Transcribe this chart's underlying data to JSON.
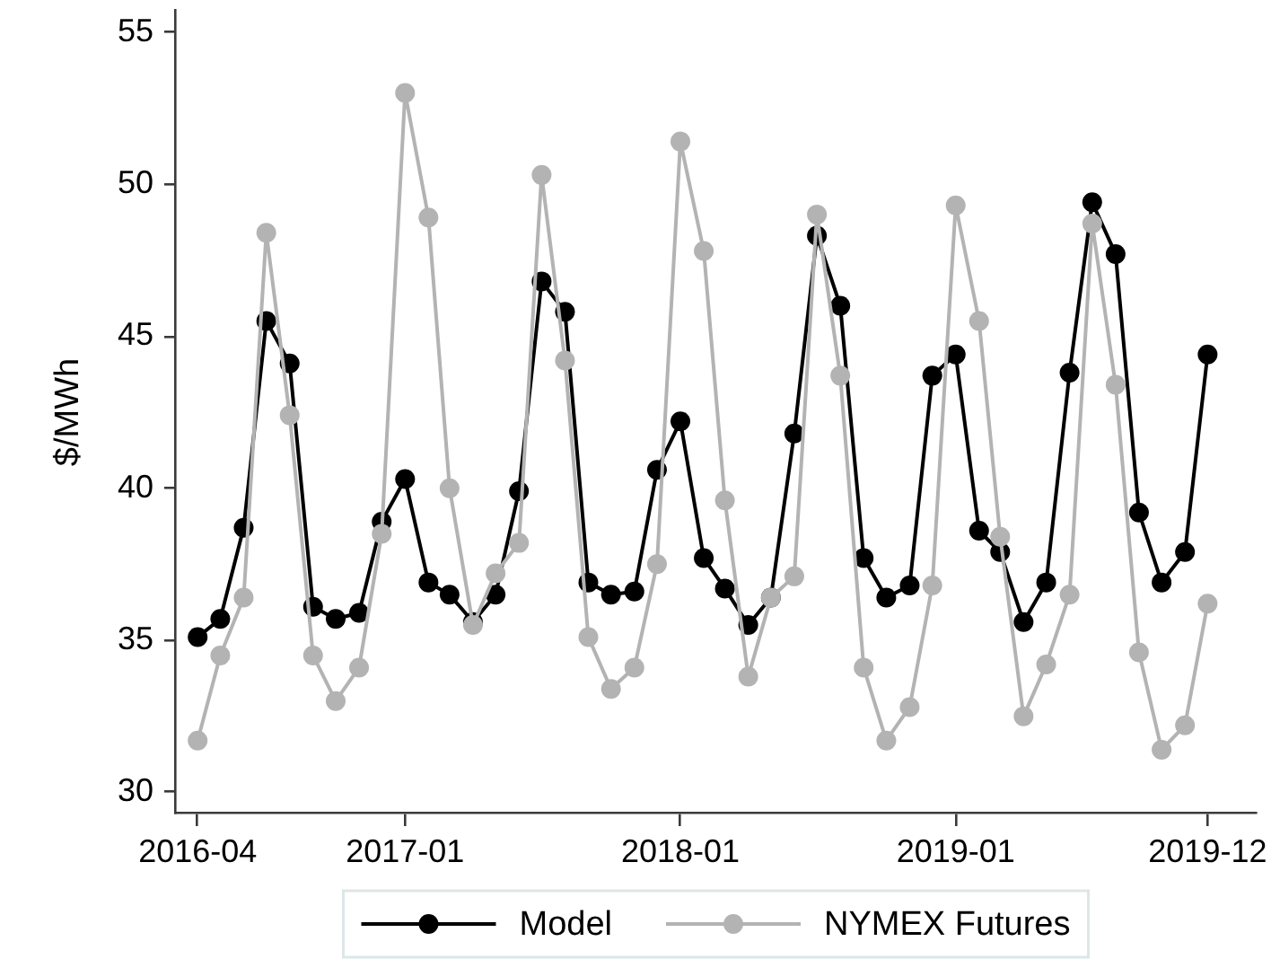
{
  "chart_data": {
    "type": "line",
    "ylabel": "$/MWh",
    "x": [
      "2016-04",
      "2016-05",
      "2016-06",
      "2016-07",
      "2016-08",
      "2016-09",
      "2016-10",
      "2016-11",
      "2016-12",
      "2017-01",
      "2017-02",
      "2017-03",
      "2017-04",
      "2017-05",
      "2017-06",
      "2017-07",
      "2017-08",
      "2017-09",
      "2017-10",
      "2017-11",
      "2017-12",
      "2018-01",
      "2018-02",
      "2018-03",
      "2018-04",
      "2018-05",
      "2018-06",
      "2018-07",
      "2018-08",
      "2018-09",
      "2018-10",
      "2018-11",
      "2018-12",
      "2019-01",
      "2019-02",
      "2019-03",
      "2019-04",
      "2019-05",
      "2019-06",
      "2019-07",
      "2019-08",
      "2019-09",
      "2019-10",
      "2019-11",
      "2019-12"
    ],
    "xlim": [
      "2016-03-02",
      "2020-02-04"
    ],
    "xticks": [
      "2016-04",
      "2017-01",
      "2018-01",
      "2019-01",
      "2019-12"
    ],
    "ylim": [
      29.3,
      55.7
    ],
    "yticks": [
      30,
      35,
      40,
      45,
      50,
      55
    ],
    "marker": "circle",
    "legend": "bottom",
    "series": [
      {
        "name": "Model",
        "color": "#000000",
        "values": [
          35.1,
          35.7,
          38.7,
          45.5,
          44.1,
          36.1,
          35.7,
          35.9,
          38.9,
          40.3,
          36.9,
          36.5,
          35.6,
          36.5,
          39.9,
          46.8,
          45.8,
          36.9,
          36.5,
          36.6,
          40.6,
          42.2,
          37.7,
          36.7,
          35.5,
          36.4,
          41.8,
          48.3,
          46.0,
          37.7,
          36.4,
          36.8,
          43.7,
          44.4,
          38.6,
          37.9,
          35.6,
          36.9,
          43.8,
          49.4,
          47.7,
          39.2,
          36.9,
          37.9,
          44.4
        ]
      },
      {
        "name": "NYMEX Futures",
        "color": "#b3b3b3",
        "values": [
          31.7,
          34.5,
          36.4,
          48.4,
          42.4,
          34.5,
          33.0,
          34.1,
          38.5,
          53.0,
          48.9,
          40.0,
          35.5,
          37.2,
          38.2,
          50.3,
          44.2,
          35.1,
          33.4,
          34.1,
          37.5,
          51.4,
          47.8,
          39.6,
          33.8,
          36.4,
          37.1,
          49.0,
          43.7,
          34.1,
          31.7,
          32.8,
          36.8,
          49.3,
          45.5,
          38.4,
          32.5,
          34.2,
          36.5,
          48.7,
          43.4,
          34.6,
          31.4,
          32.2,
          36.2
        ]
      }
    ]
  }
}
